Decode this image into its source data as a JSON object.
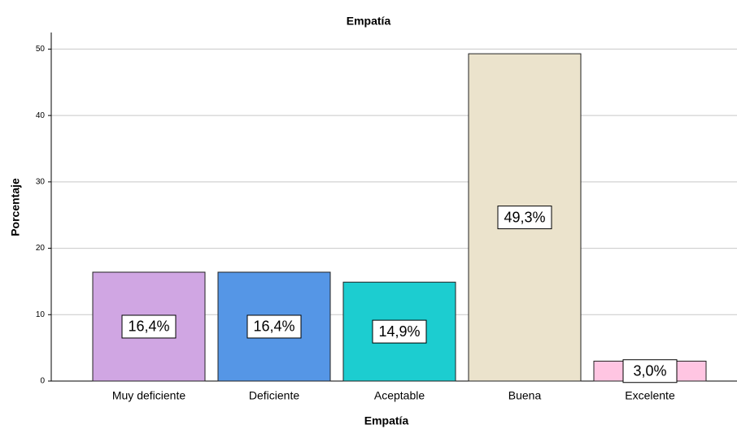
{
  "chart_data": {
    "type": "bar",
    "title": "Empatía",
    "x_label": "Empatía",
    "y_label": "Porcentaje",
    "categories": [
      "Muy deficiente",
      "Deficiente",
      "Aceptable",
      "Buena",
      "Excelente"
    ],
    "values": [
      16.4,
      16.4,
      14.9,
      49.3,
      3.0
    ],
    "value_labels": [
      "16,4%",
      "16,4%",
      "14,9%",
      "49,3%",
      "3,0%"
    ],
    "colors": [
      "#d0a6e3",
      "#5596e6",
      "#1ccdd0",
      "#ebe3cc",
      "#ffc5e2"
    ],
    "ylim": [
      0,
      52.5
    ],
    "yticks": [
      0,
      10,
      20,
      30,
      40,
      50
    ],
    "grid": true
  }
}
